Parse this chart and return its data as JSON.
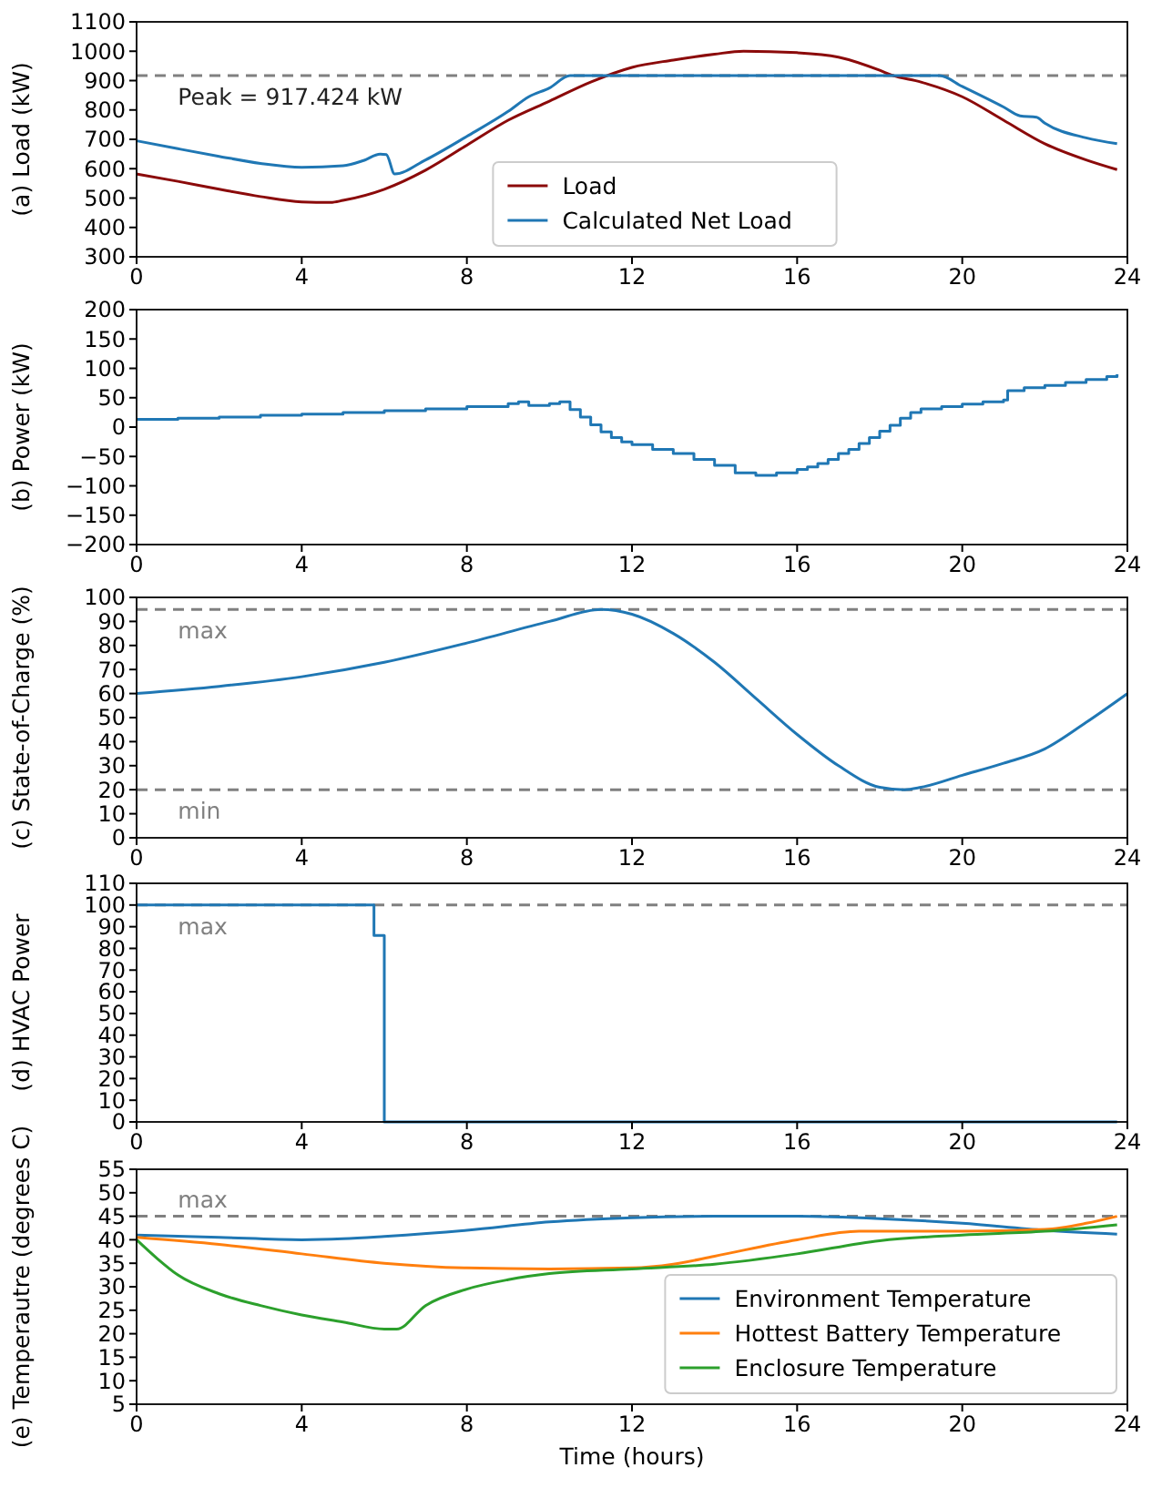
{
  "chart_data": [
    {
      "type": "line",
      "ylabel": "(a) Load (kW)",
      "xlim": [
        0,
        24
      ],
      "xticks": [
        0,
        4,
        8,
        12,
        16,
        20,
        24
      ],
      "ylim": [
        300,
        1100
      ],
      "yticks": [
        300,
        400,
        500,
        600,
        700,
        800,
        900,
        1000,
        1100
      ],
      "legend": "bottom",
      "grid": false,
      "ref_lines": [
        {
          "axis": "y",
          "value": 917.424,
          "label": "Peak = 917.424 kW",
          "color": "#808080",
          "line_style": "dashed"
        }
      ],
      "series": [
        {
          "name": "Load",
          "color": "#8b0a0a",
          "x": [
            0,
            1,
            2,
            3,
            4,
            4.7,
            5,
            6,
            7,
            8,
            9,
            10,
            11,
            12,
            13,
            14,
            14.7,
            16,
            17,
            18,
            18.3,
            19,
            20,
            21,
            22,
            23,
            23.75
          ],
          "values": [
            582,
            557,
            530,
            505,
            487,
            485,
            492,
            530,
            595,
            680,
            765,
            830,
            895,
            945,
            970,
            990,
            1000,
            995,
            980,
            935,
            918,
            895,
            845,
            765,
            685,
            630,
            597
          ]
        },
        {
          "name": "Calculated Net Load",
          "color": "#1f77b4",
          "x": [
            0,
            1,
            2,
            3,
            4,
            5,
            5.5,
            5.9,
            6.05,
            6.25,
            7,
            8,
            9,
            9.5,
            10,
            10.5,
            12,
            14,
            16,
            18,
            19.45,
            20,
            21,
            21.4,
            21.8,
            22,
            23,
            23.75
          ],
          "values": [
            695,
            668,
            642,
            618,
            605,
            610,
            628,
            650,
            648,
            582,
            630,
            710,
            795,
            845,
            875,
            917,
            917,
            917,
            917,
            917,
            917,
            880,
            810,
            780,
            775,
            755,
            705,
            685
          ]
        }
      ]
    },
    {
      "type": "line",
      "ylabel": "(b) Power (kW)",
      "xlim": [
        0,
        24
      ],
      "xticks": [
        0,
        4,
        8,
        12,
        16,
        20,
        24
      ],
      "ylim": [
        -200,
        200
      ],
      "yticks": [
        {
          "value": -200,
          "label": "−200"
        },
        {
          "value": -150,
          "label": "−150"
        },
        {
          "value": -100,
          "label": "−100"
        },
        {
          "value": -50,
          "label": "−50"
        },
        0,
        50,
        100,
        150,
        200
      ],
      "grid": false,
      "series": [
        {
          "type": "step",
          "color": "#1f77b4",
          "x": [
            0,
            1,
            2,
            3,
            4,
            5,
            6,
            7,
            8,
            9,
            9.25,
            9.5,
            10,
            10.25,
            10.5,
            10.75,
            11,
            11.25,
            11.5,
            11.75,
            12,
            12.5,
            13,
            13.5,
            14,
            14.5,
            15,
            15.5,
            16,
            16.25,
            16.5,
            16.75,
            17,
            17.25,
            17.5,
            17.75,
            18,
            18.25,
            18.5,
            18.75,
            19,
            19.5,
            20,
            20.5,
            21,
            21.1,
            21.5,
            22,
            22.5,
            23,
            23.5,
            23.75
          ],
          "values": [
            13,
            15,
            17,
            20,
            22,
            25,
            28,
            31,
            35,
            40,
            43,
            37,
            40,
            43,
            30,
            17,
            4,
            -8,
            -18,
            -25,
            -30,
            -38,
            -45,
            -55,
            -65,
            -78,
            -82,
            -78,
            -72,
            -68,
            -62,
            -55,
            -45,
            -38,
            -28,
            -18,
            -7,
            3,
            15,
            25,
            31,
            35,
            39,
            43,
            46,
            62,
            67,
            71,
            76,
            81,
            86,
            90
          ]
        }
      ]
    },
    {
      "type": "line",
      "ylabel": "(c) State-of-Charge (%)",
      "xlim": [
        0,
        24
      ],
      "xticks": [
        0,
        4,
        8,
        12,
        16,
        20,
        24
      ],
      "ylim": [
        0,
        100
      ],
      "yticks": [
        0,
        10,
        20,
        30,
        40,
        50,
        60,
        70,
        80,
        90,
        100
      ],
      "grid": false,
      "ref_lines": [
        {
          "axis": "y",
          "value": 95,
          "label": "max",
          "color": "#808080",
          "line_style": "dashed"
        },
        {
          "axis": "y",
          "value": 20,
          "label": "min",
          "color": "#808080",
          "line_style": "dashed"
        }
      ],
      "series": [
        {
          "color": "#1f77b4",
          "x": [
            0,
            2,
            4,
            6,
            8,
            10,
            11.25,
            12,
            13,
            14,
            15,
            16,
            17,
            18,
            18.6,
            19,
            20,
            21,
            22,
            23,
            24
          ],
          "values": [
            60,
            63,
            67,
            73,
            81,
            90,
            95,
            93,
            85,
            73,
            58,
            43,
            30,
            21,
            20,
            21,
            26,
            31,
            37,
            48,
            60
          ]
        }
      ]
    },
    {
      "type": "line",
      "ylabel": "(d) HVAC Power",
      "xlim": [
        0,
        24
      ],
      "xticks": [
        0,
        4,
        8,
        12,
        16,
        20,
        24
      ],
      "ylim": [
        0,
        110
      ],
      "yticks": [
        0,
        10,
        20,
        30,
        40,
        50,
        60,
        70,
        80,
        90,
        100,
        110
      ],
      "grid": false,
      "ref_lines": [
        {
          "axis": "y",
          "value": 100,
          "label": "max",
          "color": "#808080",
          "line_style": "dashed"
        }
      ],
      "series": [
        {
          "type": "step",
          "color": "#1f77b4",
          "x": [
            0,
            5.75,
            6,
            23.75
          ],
          "values": [
            100,
            86,
            0,
            0
          ]
        }
      ]
    },
    {
      "type": "line",
      "xlabel": "Time (hours)",
      "ylabel": "(e) Temperautre (degrees C)",
      "xlim": [
        0,
        24
      ],
      "xticks": [
        0,
        4,
        8,
        12,
        16,
        20,
        24
      ],
      "ylim": [
        5,
        55
      ],
      "yticks": [
        5,
        10,
        15,
        20,
        25,
        30,
        35,
        40,
        45,
        50,
        55
      ],
      "legend": "bottom right",
      "grid": false,
      "ref_lines": [
        {
          "axis": "y",
          "value": 45,
          "label": "max",
          "color": "#808080",
          "line_style": "dashed"
        }
      ],
      "series": [
        {
          "name": "Environment Temperature",
          "color": "#1f77b4",
          "x": [
            0,
            2,
            4,
            5,
            6,
            8,
            10,
            12,
            14,
            16,
            18,
            20,
            22,
            23.75
          ],
          "values": [
            41,
            40.5,
            40,
            40.2,
            40.7,
            42,
            43.8,
            44.7,
            45,
            45,
            44.5,
            43.5,
            42,
            41.2
          ]
        },
        {
          "name": "Hottest Battery Temperature",
          "color": "#ff7f0e",
          "x": [
            0,
            2,
            4,
            6,
            8,
            10,
            12,
            13,
            14,
            16,
            17.5,
            20,
            22,
            23,
            23.75
          ],
          "values": [
            40.5,
            39,
            37,
            35,
            34,
            33.8,
            34,
            34.8,
            36.5,
            40,
            41.8,
            41.8,
            42.2,
            43.5,
            45
          ]
        },
        {
          "name": "Enclosure Temperature",
          "color": "#2ca02c",
          "x": [
            0,
            0.5,
            1,
            2,
            3,
            4,
            5,
            6,
            6.3,
            7,
            8,
            9,
            10,
            12,
            14,
            16,
            18,
            20,
            22,
            23.75
          ],
          "values": [
            40,
            36,
            32.5,
            28.5,
            26,
            24,
            22.5,
            21,
            21,
            26,
            29.5,
            31.5,
            32.8,
            33.8,
            34.8,
            37,
            39.8,
            41,
            41.8,
            43.2
          ]
        }
      ]
    }
  ]
}
